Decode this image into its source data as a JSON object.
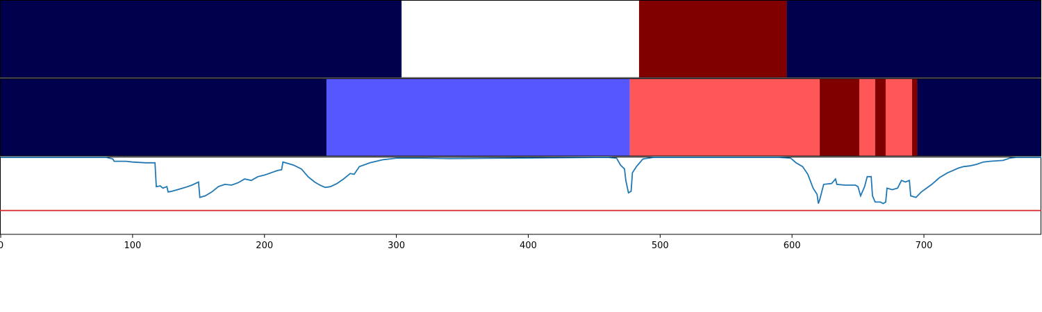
{
  "chart_data": {
    "type": "area",
    "xlim": [
      0,
      789
    ],
    "xticks": [
      {
        "value": 0,
        "label": "0"
      },
      {
        "value": 100,
        "label": "100"
      },
      {
        "value": 200,
        "label": "200"
      },
      {
        "value": 300,
        "label": "300"
      },
      {
        "value": 400,
        "label": "400"
      },
      {
        "value": 500,
        "label": "500"
      },
      {
        "value": 600,
        "label": "600"
      },
      {
        "value": 700,
        "label": "700"
      }
    ],
    "top_band": {
      "segments": [
        {
          "start": 0,
          "end": 304,
          "color": "#00004c"
        },
        {
          "start": 304,
          "end": 484,
          "color": "#ffffff"
        },
        {
          "start": 484,
          "end": 596,
          "color": "#800000"
        },
        {
          "start": 596,
          "end": 789,
          "color": "#00004c"
        }
      ]
    },
    "middle_band": {
      "segments": [
        {
          "start": 0,
          "end": 247,
          "color": "#00004c"
        },
        {
          "start": 247,
          "end": 477,
          "color": "#5757ff"
        },
        {
          "start": 477,
          "end": 621,
          "color": "#ff5757"
        },
        {
          "start": 621,
          "end": 651,
          "color": "#800000"
        },
        {
          "start": 651,
          "end": 663,
          "color": "#ff5757"
        },
        {
          "start": 663,
          "end": 671,
          "color": "#800000"
        },
        {
          "start": 671,
          "end": 691,
          "color": "#ff5757"
        },
        {
          "start": 691,
          "end": 695,
          "color": "#800000"
        },
        {
          "start": 695,
          "end": 789,
          "color": "#00004c"
        }
      ]
    },
    "signal": {
      "ylim": [
        0,
        1
      ],
      "threshold": 0.31,
      "threshold_color": "#d62728",
      "line_color": "#1f77b4",
      "points": [
        [
          0,
          1.0
        ],
        [
          80,
          1.0
        ],
        [
          85,
          0.98
        ],
        [
          86,
          0.95
        ],
        [
          95,
          0.95
        ],
        [
          100,
          0.94
        ],
        [
          110,
          0.93
        ],
        [
          117,
          0.93
        ],
        [
          118,
          0.62
        ],
        [
          121,
          0.63
        ],
        [
          123,
          0.6
        ],
        [
          126,
          0.62
        ],
        [
          127,
          0.55
        ],
        [
          130,
          0.56
        ],
        [
          134,
          0.58
        ],
        [
          140,
          0.61
        ],
        [
          145,
          0.64
        ],
        [
          150,
          0.68
        ],
        [
          151,
          0.48
        ],
        [
          155,
          0.5
        ],
        [
          160,
          0.55
        ],
        [
          165,
          0.62
        ],
        [
          170,
          0.65
        ],
        [
          175,
          0.64
        ],
        [
          180,
          0.67
        ],
        [
          185,
          0.72
        ],
        [
          190,
          0.7
        ],
        [
          195,
          0.75
        ],
        [
          200,
          0.77
        ],
        [
          205,
          0.8
        ],
        [
          210,
          0.83
        ],
        [
          213,
          0.84
        ],
        [
          214,
          0.94
        ],
        [
          218,
          0.92
        ],
        [
          222,
          0.9
        ],
        [
          228,
          0.85
        ],
        [
          233,
          0.75
        ],
        [
          238,
          0.68
        ],
        [
          242,
          0.64
        ],
        [
          246,
          0.61
        ],
        [
          250,
          0.62
        ],
        [
          255,
          0.66
        ],
        [
          260,
          0.72
        ],
        [
          265,
          0.79
        ],
        [
          268,
          0.78
        ],
        [
          272,
          0.88
        ],
        [
          280,
          0.93
        ],
        [
          290,
          0.97
        ],
        [
          300,
          0.99
        ],
        [
          320,
          0.99
        ],
        [
          340,
          0.985
        ],
        [
          380,
          0.99
        ],
        [
          420,
          0.995
        ],
        [
          460,
          1.0
        ],
        [
          467,
          0.99
        ],
        [
          470,
          0.9
        ],
        [
          473,
          0.85
        ],
        [
          474,
          0.7
        ],
        [
          476,
          0.54
        ],
        [
          478,
          0.56
        ],
        [
          479,
          0.8
        ],
        [
          482,
          0.88
        ],
        [
          484,
          0.92
        ],
        [
          487,
          0.98
        ],
        [
          495,
          1.0
        ],
        [
          560,
          1.0
        ],
        [
          590,
          1.0
        ],
        [
          599,
          0.99
        ],
        [
          603,
          0.93
        ],
        [
          608,
          0.88
        ],
        [
          612,
          0.78
        ],
        [
          616,
          0.6
        ],
        [
          619,
          0.52
        ],
        [
          620,
          0.4
        ],
        [
          621,
          0.45
        ],
        [
          624,
          0.65
        ],
        [
          630,
          0.66
        ],
        [
          633,
          0.72
        ],
        [
          634,
          0.65
        ],
        [
          640,
          0.64
        ],
        [
          648,
          0.64
        ],
        [
          650,
          0.62
        ],
        [
          652,
          0.5
        ],
        [
          655,
          0.62
        ],
        [
          657,
          0.75
        ],
        [
          660,
          0.75
        ],
        [
          661,
          0.5
        ],
        [
          663,
          0.42
        ],
        [
          667,
          0.42
        ],
        [
          669,
          0.4
        ],
        [
          671,
          0.42
        ],
        [
          672,
          0.6
        ],
        [
          676,
          0.58
        ],
        [
          680,
          0.6
        ],
        [
          683,
          0.7
        ],
        [
          686,
          0.68
        ],
        [
          689,
          0.7
        ],
        [
          690,
          0.5
        ],
        [
          694,
          0.48
        ],
        [
          698,
          0.55
        ],
        [
          702,
          0.6
        ],
        [
          706,
          0.65
        ],
        [
          712,
          0.74
        ],
        [
          718,
          0.8
        ],
        [
          722,
          0.83
        ],
        [
          726,
          0.86
        ],
        [
          730,
          0.88
        ],
        [
          735,
          0.89
        ],
        [
          740,
          0.91
        ],
        [
          745,
          0.94
        ],
        [
          750,
          0.95
        ],
        [
          755,
          0.955
        ],
        [
          760,
          0.96
        ],
        [
          765,
          0.99
        ],
        [
          770,
          1.0
        ],
        [
          789,
          1.0
        ]
      ]
    }
  }
}
